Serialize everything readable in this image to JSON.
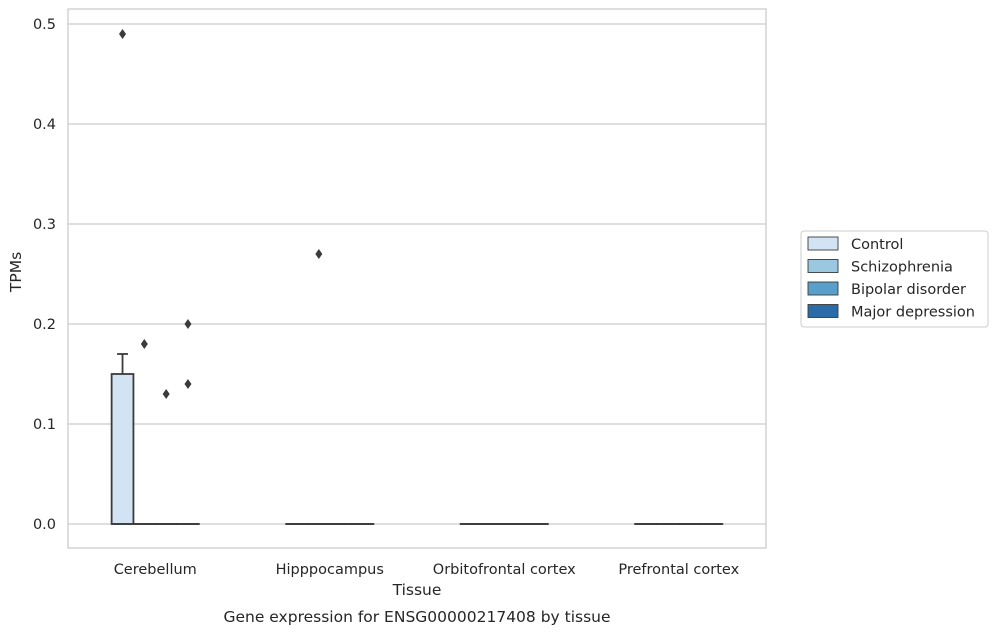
{
  "chart_data": {
    "type": "boxplot",
    "title": "Gene expression for ENSG00000217408 by tissue",
    "xlabel": "Tissue",
    "ylabel": "TPMs",
    "ylim": [
      -0.024,
      0.515
    ],
    "yticks": [
      0.0,
      0.1,
      0.2,
      0.3,
      0.4,
      0.5
    ],
    "ytick_labels": [
      "0.0",
      "0.1",
      "0.2",
      "0.3",
      "0.4",
      "0.5"
    ],
    "categories": [
      "Cerebellum",
      "Hipppocampus",
      "Orbitofrontal cortex",
      "Prefrontal cortex"
    ],
    "grid": true,
    "legend_position": "right",
    "series": [
      {
        "name": "Control",
        "color": "#d2e3f3",
        "boxes": [
          {
            "q1": 0.0,
            "median": 0.0,
            "q3": 0.15,
            "whisker_low": 0.0,
            "whisker_high": 0.17,
            "outliers": [
              0.49
            ]
          },
          {
            "q1": 0.0,
            "median": 0.0,
            "q3": 0.0,
            "whisker_low": 0.0,
            "whisker_high": 0.0,
            "outliers": []
          },
          {
            "q1": 0.0,
            "median": 0.0,
            "q3": 0.0,
            "whisker_low": 0.0,
            "whisker_high": 0.0,
            "outliers": []
          },
          {
            "q1": 0.0,
            "median": 0.0,
            "q3": 0.0,
            "whisker_low": 0.0,
            "whisker_high": 0.0,
            "outliers": []
          }
        ]
      },
      {
        "name": "Schizophrenia",
        "color": "#9ac8e0",
        "boxes": [
          {
            "q1": 0.0,
            "median": 0.0,
            "q3": 0.0,
            "whisker_low": 0.0,
            "whisker_high": 0.0,
            "outliers": [
              0.18
            ]
          },
          {
            "q1": 0.0,
            "median": 0.0,
            "q3": 0.0,
            "whisker_low": 0.0,
            "whisker_high": 0.0,
            "outliers": [
              0.27
            ]
          },
          {
            "q1": 0.0,
            "median": 0.0,
            "q3": 0.0,
            "whisker_low": 0.0,
            "whisker_high": 0.0,
            "outliers": []
          },
          {
            "q1": 0.0,
            "median": 0.0,
            "q3": 0.0,
            "whisker_low": 0.0,
            "whisker_high": 0.0,
            "outliers": []
          }
        ]
      },
      {
        "name": "Bipolar disorder",
        "color": "#5a9fcb",
        "boxes": [
          {
            "q1": 0.0,
            "median": 0.0,
            "q3": 0.0,
            "whisker_low": 0.0,
            "whisker_high": 0.0,
            "outliers": [
              0.13
            ]
          },
          {
            "q1": 0.0,
            "median": 0.0,
            "q3": 0.0,
            "whisker_low": 0.0,
            "whisker_high": 0.0,
            "outliers": []
          },
          {
            "q1": 0.0,
            "median": 0.0,
            "q3": 0.0,
            "whisker_low": 0.0,
            "whisker_high": 0.0,
            "outliers": []
          },
          {
            "q1": 0.0,
            "median": 0.0,
            "q3": 0.0,
            "whisker_low": 0.0,
            "whisker_high": 0.0,
            "outliers": []
          }
        ]
      },
      {
        "name": "Major depression",
        "color": "#2b6ca8",
        "boxes": [
          {
            "q1": 0.0,
            "median": 0.0,
            "q3": 0.0,
            "whisker_low": 0.0,
            "whisker_high": 0.0,
            "outliers": [
              0.2,
              0.14
            ]
          },
          {
            "q1": 0.0,
            "median": 0.0,
            "q3": 0.0,
            "whisker_low": 0.0,
            "whisker_high": 0.0,
            "outliers": []
          },
          {
            "q1": 0.0,
            "median": 0.0,
            "q3": 0.0,
            "whisker_low": 0.0,
            "whisker_high": 0.0,
            "outliers": []
          },
          {
            "q1": 0.0,
            "median": 0.0,
            "q3": 0.0,
            "whisker_low": 0.0,
            "whisker_high": 0.0,
            "outliers": []
          }
        ]
      }
    ],
    "style": {
      "grid_color": "#cccccc",
      "frame_color": "#cccccc",
      "line_color": "#3b3b3b",
      "text_color": "#262626"
    }
  }
}
